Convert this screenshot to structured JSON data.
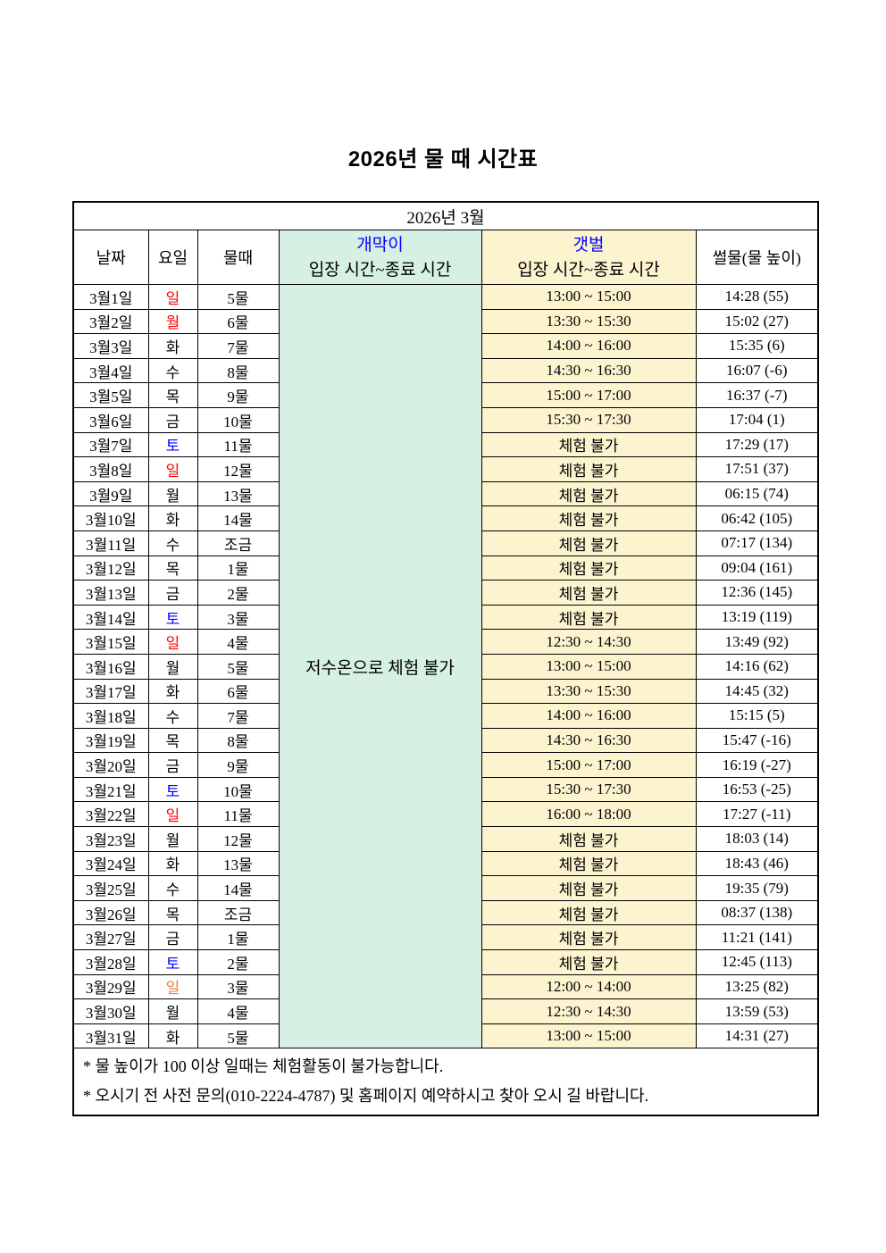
{
  "title": "2026년 물 때 시간표",
  "table": {
    "month_header": "2026년 3월",
    "columns": {
      "date": "날짜",
      "weekday": "요일",
      "tide": "물때",
      "gaemagi_title": "개막이",
      "gaemagi_sub": "입장 시간~종료 시간",
      "gaetbeol_title": "갯벌",
      "gaetbeol_sub": "입장 시간~종료 시간",
      "ebb": "썰물(물 높이)"
    },
    "gaemagi_merged_text": "저수온으로 체험 불가",
    "rows": [
      {
        "date": "3월1일",
        "weekday": "일",
        "weekday_color": "red",
        "tide": "5물",
        "gaetbeol": "13:00 ~ 15:00",
        "ebb": "14:28 (55)"
      },
      {
        "date": "3월2일",
        "weekday": "월",
        "weekday_color": "red",
        "tide": "6물",
        "gaetbeol": "13:30 ~ 15:30",
        "ebb": "15:02 (27)"
      },
      {
        "date": "3월3일",
        "weekday": "화",
        "weekday_color": "black",
        "tide": "7물",
        "gaetbeol": "14:00 ~ 16:00",
        "ebb": "15:35 (6)"
      },
      {
        "date": "3월4일",
        "weekday": "수",
        "weekday_color": "black",
        "tide": "8물",
        "gaetbeol": "14:30 ~ 16:30",
        "ebb": "16:07 (-6)"
      },
      {
        "date": "3월5일",
        "weekday": "목",
        "weekday_color": "black",
        "tide": "9물",
        "gaetbeol": "15:00 ~ 17:00",
        "ebb": "16:37 (-7)"
      },
      {
        "date": "3월6일",
        "weekday": "금",
        "weekday_color": "black",
        "tide": "10물",
        "gaetbeol": "15:30 ~ 17:30",
        "ebb": "17:04 (1)"
      },
      {
        "date": "3월7일",
        "weekday": "토",
        "weekday_color": "blue",
        "tide": "11물",
        "gaetbeol": "체험 불가",
        "ebb": "17:29 (17)"
      },
      {
        "date": "3월8일",
        "weekday": "일",
        "weekday_color": "red",
        "tide": "12물",
        "gaetbeol": "체험 불가",
        "ebb": "17:51 (37)"
      },
      {
        "date": "3월9일",
        "weekday": "월",
        "weekday_color": "black",
        "tide": "13물",
        "gaetbeol": "체험 불가",
        "ebb": "06:15 (74)"
      },
      {
        "date": "3월10일",
        "weekday": "화",
        "weekday_color": "black",
        "tide": "14물",
        "gaetbeol": "체험 불가",
        "ebb": "06:42 (105)"
      },
      {
        "date": "3월11일",
        "weekday": "수",
        "weekday_color": "black",
        "tide": "조금",
        "gaetbeol": "체험 불가",
        "ebb": "07:17 (134)"
      },
      {
        "date": "3월12일",
        "weekday": "목",
        "weekday_color": "black",
        "tide": "1물",
        "gaetbeol": "체험 불가",
        "ebb": "09:04 (161)"
      },
      {
        "date": "3월13일",
        "weekday": "금",
        "weekday_color": "black",
        "tide": "2물",
        "gaetbeol": "체험 불가",
        "ebb": "12:36 (145)"
      },
      {
        "date": "3월14일",
        "weekday": "토",
        "weekday_color": "blue",
        "tide": "3물",
        "gaetbeol": "체험 불가",
        "ebb": "13:19 (119)"
      },
      {
        "date": "3월15일",
        "weekday": "일",
        "weekday_color": "red",
        "tide": "4물",
        "gaetbeol": "12:30 ~ 14:30",
        "ebb": "13:49 (92)"
      },
      {
        "date": "3월16일",
        "weekday": "월",
        "weekday_color": "black",
        "tide": "5물",
        "gaetbeol": "13:00 ~ 15:00",
        "ebb": "14:16 (62)"
      },
      {
        "date": "3월17일",
        "weekday": "화",
        "weekday_color": "black",
        "tide": "6물",
        "gaetbeol": "13:30 ~ 15:30",
        "ebb": "14:45 (32)"
      },
      {
        "date": "3월18일",
        "weekday": "수",
        "weekday_color": "black",
        "tide": "7물",
        "gaetbeol": "14:00 ~ 16:00",
        "ebb": "15:15 (5)"
      },
      {
        "date": "3월19일",
        "weekday": "목",
        "weekday_color": "black",
        "tide": "8물",
        "gaetbeol": "14:30 ~ 16:30",
        "ebb": "15:47 (-16)"
      },
      {
        "date": "3월20일",
        "weekday": "금",
        "weekday_color": "black",
        "tide": "9물",
        "gaetbeol": "15:00 ~ 17:00",
        "ebb": "16:19 (-27)"
      },
      {
        "date": "3월21일",
        "weekday": "토",
        "weekday_color": "blue",
        "tide": "10물",
        "gaetbeol": "15:30 ~ 17:30",
        "ebb": "16:53 (-25)"
      },
      {
        "date": "3월22일",
        "weekday": "일",
        "weekday_color": "red",
        "tide": "11물",
        "gaetbeol": "16:00 ~ 18:00",
        "ebb": "17:27 (-11)"
      },
      {
        "date": "3월23일",
        "weekday": "월",
        "weekday_color": "black",
        "tide": "12물",
        "gaetbeol": "체험 불가",
        "ebb": "18:03 (14)"
      },
      {
        "date": "3월24일",
        "weekday": "화",
        "weekday_color": "black",
        "tide": "13물",
        "gaetbeol": "체험 불가",
        "ebb": "18:43 (46)"
      },
      {
        "date": "3월25일",
        "weekday": "수",
        "weekday_color": "black",
        "tide": "14물",
        "gaetbeol": "체험 불가",
        "ebb": "19:35 (79)"
      },
      {
        "date": "3월26일",
        "weekday": "목",
        "weekday_color": "black",
        "tide": "조금",
        "gaetbeol": "체험 불가",
        "ebb": "08:37 (138)"
      },
      {
        "date": "3월27일",
        "weekday": "금",
        "weekday_color": "black",
        "tide": "1물",
        "gaetbeol": "체험 불가",
        "ebb": "11:21 (141)"
      },
      {
        "date": "3월28일",
        "weekday": "토",
        "weekday_color": "blue",
        "tide": "2물",
        "gaetbeol": "체험 불가",
        "ebb": "12:45 (113)"
      },
      {
        "date": "3월29일",
        "weekday": "일",
        "weekday_color": "orange",
        "tide": "3물",
        "gaetbeol": "12:00 ~ 14:00",
        "ebb": "13:25 (82)"
      },
      {
        "date": "3월30일",
        "weekday": "월",
        "weekday_color": "black",
        "tide": "4물",
        "gaetbeol": "12:30 ~ 14:30",
        "ebb": "13:59 (53)"
      },
      {
        "date": "3월31일",
        "weekday": "화",
        "weekday_color": "black",
        "tide": "5물",
        "gaetbeol": "13:00 ~ 15:00",
        "ebb": "14:31 (27)"
      }
    ],
    "notes": [
      "* 물 높이가 100 이상 일때는 체험활동이 불가능합니다.",
      "* 오시기 전 사전 문의(010-2224-4787) 및 홈페이지 예약하시고 찾아 오시 길 바랍니다."
    ]
  },
  "colors": {
    "black": "#000000",
    "red": "#FF0000",
    "blue": "#0000FF",
    "orange": "#ED7D31",
    "header_blue": "#0000FF",
    "mint_bg": "#D7F0E4",
    "yellow_bg": "#FCF3CF"
  }
}
